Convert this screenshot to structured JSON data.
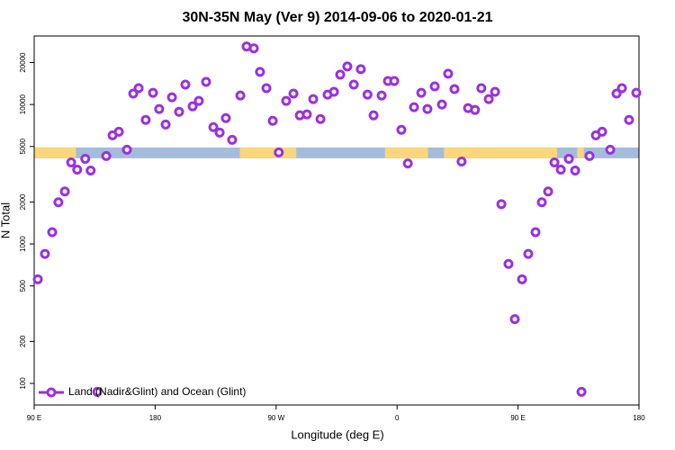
{
  "chart_data": {
    "type": "scatter",
    "title": "30N-35N May (Ver 9)   2014-09-06 to 2020-01-21",
    "xlabel": "Longitude (deg E)",
    "ylabel": "N Total",
    "xlim": [
      90,
      540
    ],
    "ylim": [
      70,
      31000
    ],
    "ylog": true,
    "xticks": [
      {
        "value": 90,
        "label": "90 E"
      },
      180,
      {
        "value": 270,
        "label": "90 W"
      },
      {
        "value": 360,
        "label": "0"
      },
      {
        "value": 450,
        "label": "90 E"
      },
      {
        "value": 540,
        "label": "180"
      }
    ],
    "yticks": [
      100,
      200,
      500,
      1000,
      2000,
      5000,
      10000,
      20000
    ],
    "band_value": 4500,
    "band_color": "#a4bcdc",
    "land_color": "#fcd67a",
    "land_ranges": [
      [
        90,
        121
      ],
      [
        243,
        285
      ],
      [
        351,
        383
      ],
      [
        395,
        479
      ],
      [
        494,
        499
      ]
    ],
    "legend": "bottom-left",
    "series": [
      {
        "name": "Land (Nadir&Glint) and Ocean (Glint)",
        "color": "#9b30e0",
        "x": [
          92.7,
          98,
          103.4,
          108,
          112.8,
          117.5,
          122,
          128,
          132,
          137,
          143.6,
          148.3,
          153,
          159,
          163.7,
          167.7,
          173,
          178.4,
          183,
          187.8,
          192.5,
          197.8,
          202.5,
          207.9,
          212.5,
          217.9,
          223.3,
          228,
          232.6,
          237.3,
          243.4,
          248,
          253.4,
          258,
          262.8,
          267.5,
          272,
          277.5,
          282.9,
          287.6,
          292.9,
          297.6,
          303,
          308.3,
          313,
          317.7,
          323,
          327.8,
          333,
          338,
          342.5,
          348.5,
          353.2,
          357.9,
          363.2,
          368,
          372.6,
          378,
          382.6,
          388,
          393.4,
          398,
          402.7,
          408,
          412.8,
          418,
          422.7,
          428.2,
          432.9,
          437.6,
          442.9,
          447.6,
          453,
          457.6,
          463,
          467.7,
          472.4,
          477.1,
          481.8,
          487.8,
          492.5,
          497.2,
          503.2,
          507.9,
          512.6,
          518.6,
          523.3,
          527.3,
          532.6,
          538
        ],
        "values": [
          558,
          849,
          1214,
          1990,
          2380,
          3840,
          3410,
          4080,
          3360,
          87,
          4270,
          6010,
          6380,
          4740,
          11970,
          13090,
          7750,
          12140,
          9280,
          7190,
          11270,
          8870,
          13890,
          9700,
          10610,
          14530,
          6880,
          6290,
          7990,
          5580,
          11610,
          26060,
          25290,
          17140,
          13090,
          7640,
          4530,
          10610,
          11970,
          8360,
          8490,
          10940,
          7870,
          11780,
          12330,
          16380,
          18740,
          13890,
          17910,
          11780,
          8360,
          11610,
          14740,
          14740,
          6580,
          3780,
          9560,
          12140,
          9280,
          13490,
          10000,
          16630,
          12890,
          3900,
          9420,
          9140,
          13090,
          10940,
          12330,
          1930,
          719,
          289,
          558,
          849,
          1214,
          1990,
          2380,
          3840,
          3410,
          4080,
          3360,
          87,
          4270,
          6010,
          6380,
          4740,
          11970,
          13090,
          7750,
          12140
        ]
      }
    ]
  }
}
